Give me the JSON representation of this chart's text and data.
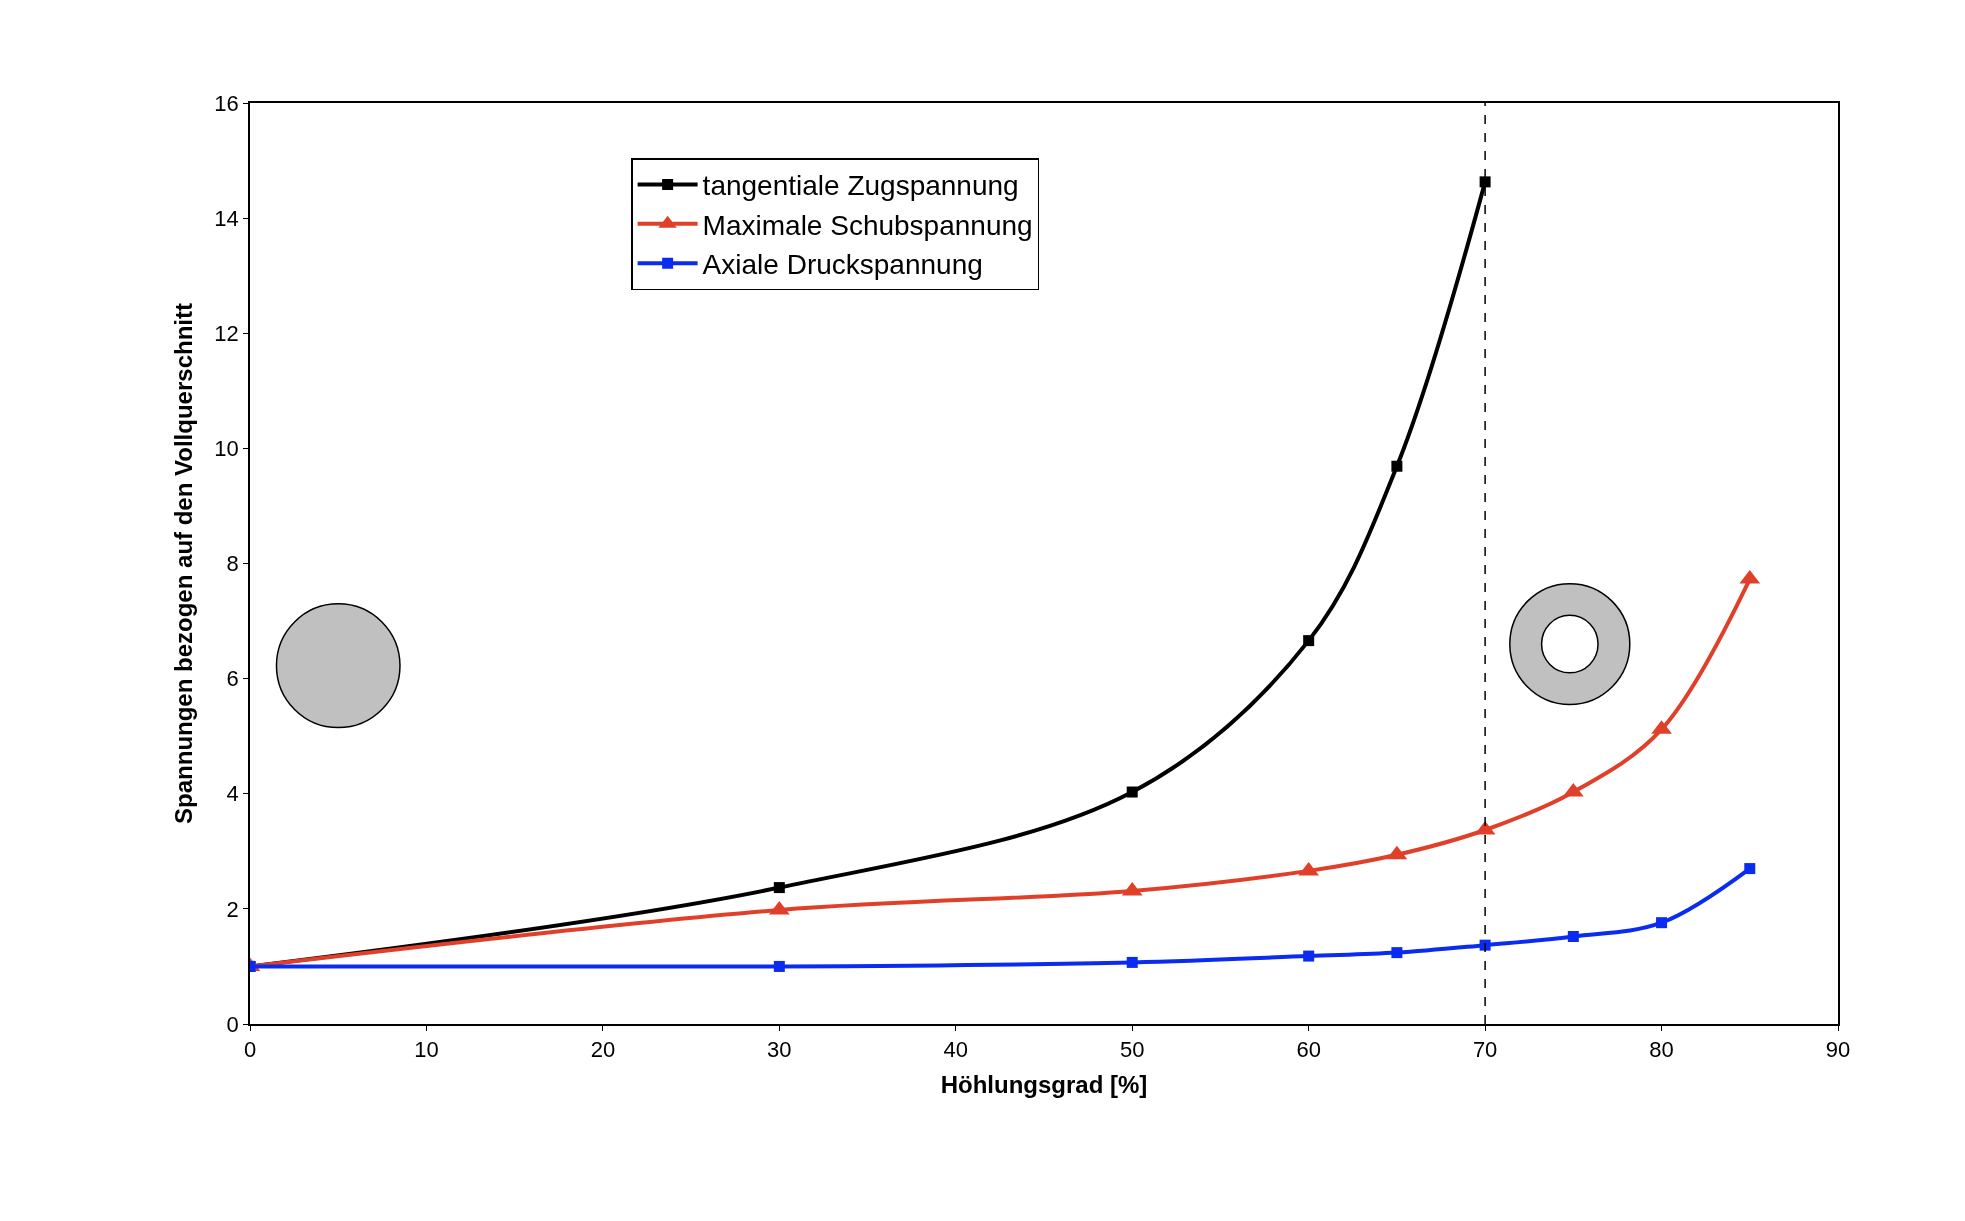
{
  "chart_data": {
    "type": "line",
    "xlabel": "Höhlungsgrad [%]",
    "ylabel": "Spannungen bezogen auf den Vollquerschnitt",
    "xlim": [
      0,
      90
    ],
    "xticks": [
      0,
      10,
      20,
      30,
      40,
      50,
      60,
      70,
      80,
      90
    ],
    "ylim": [
      0,
      16
    ],
    "yticks": [
      0,
      2,
      4,
      6,
      8,
      10,
      12,
      14,
      16
    ],
    "legend": "top left",
    "series": [
      {
        "name": "tangentiale Zugspannung",
        "color": "#000000",
        "marker": "square",
        "x": [
          0,
          30,
          50,
          60,
          65,
          70
        ],
        "values": [
          1,
          2.37,
          4.03,
          6.66,
          9.69,
          14.63
        ]
      },
      {
        "name": "Maximale Schubspannung",
        "color": "#e0402a",
        "marker": "triangle",
        "x": [
          0,
          30,
          50,
          60,
          65,
          70,
          75,
          80,
          85
        ],
        "values": [
          1,
          1.98,
          2.31,
          2.66,
          2.94,
          3.37,
          4.03,
          5.12,
          7.73
        ]
      },
      {
        "name": "Axiale Druckspannung",
        "color": "#0a2cf0",
        "marker": "square",
        "x": [
          0,
          30,
          50,
          60,
          65,
          70,
          75,
          80,
          85
        ],
        "values": [
          1,
          1.0,
          1.07,
          1.18,
          1.24,
          1.37,
          1.52,
          1.76,
          2.7
        ]
      }
    ],
    "ref_lines": [
      {
        "axis": "x",
        "value": 70,
        "label": null,
        "color": "#000000",
        "line_style": "dashed"
      }
    ]
  }
}
